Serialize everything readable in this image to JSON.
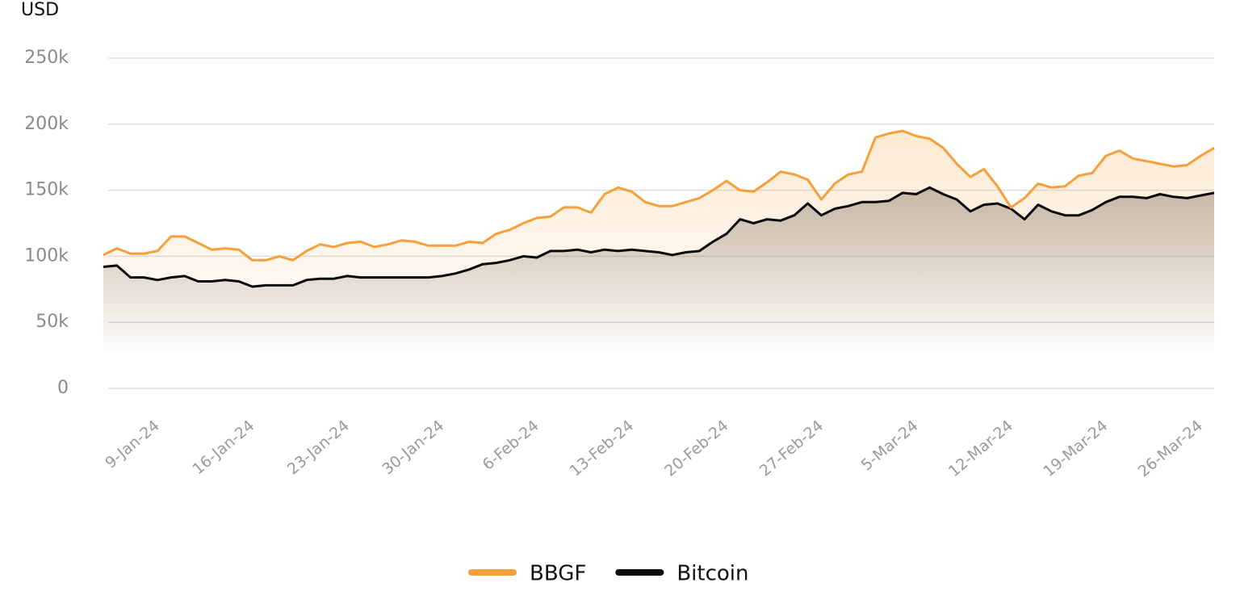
{
  "chart_data": {
    "type": "line",
    "y_label": "USD",
    "area": true,
    "grid": true,
    "x": [
      "2024-01-05",
      "2024-01-06",
      "2024-01-07",
      "2024-01-08",
      "2024-01-09",
      "2024-01-10",
      "2024-01-11",
      "2024-01-12",
      "2024-01-13",
      "2024-01-14",
      "2024-01-15",
      "2024-01-16",
      "2024-01-17",
      "2024-01-18",
      "2024-01-19",
      "2024-01-20",
      "2024-01-21",
      "2024-01-22",
      "2024-01-23",
      "2024-01-24",
      "2024-01-25",
      "2024-01-26",
      "2024-01-27",
      "2024-01-28",
      "2024-01-29",
      "2024-01-30",
      "2024-01-31",
      "2024-02-01",
      "2024-02-02",
      "2024-02-03",
      "2024-02-04",
      "2024-02-05",
      "2024-02-06",
      "2024-02-07",
      "2024-02-08",
      "2024-02-09",
      "2024-02-10",
      "2024-02-11",
      "2024-02-12",
      "2024-02-13",
      "2024-02-14",
      "2024-02-15",
      "2024-02-16",
      "2024-02-17",
      "2024-02-18",
      "2024-02-19",
      "2024-02-20",
      "2024-02-21",
      "2024-02-22",
      "2024-02-23",
      "2024-02-24",
      "2024-02-25",
      "2024-02-26",
      "2024-02-27",
      "2024-02-28",
      "2024-02-29",
      "2024-03-01",
      "2024-03-02",
      "2024-03-03",
      "2024-03-04",
      "2024-03-05",
      "2024-03-06",
      "2024-03-07",
      "2024-03-08",
      "2024-03-09",
      "2024-03-10",
      "2024-03-11",
      "2024-03-12",
      "2024-03-13",
      "2024-03-14",
      "2024-03-15",
      "2024-03-16",
      "2024-03-17",
      "2024-03-18",
      "2024-03-19",
      "2024-03-20",
      "2024-03-21",
      "2024-03-22",
      "2024-03-23",
      "2024-03-24",
      "2024-03-25",
      "2024-03-26",
      "2024-03-27"
    ],
    "xlim": [
      "2024-01-05",
      "2024-03-27"
    ],
    "xticks": [
      {
        "value": "2024-01-09",
        "label": "9-Jan-24"
      },
      {
        "value": "2024-01-16",
        "label": "16-Jan-24"
      },
      {
        "value": "2024-01-23",
        "label": "23-Jan-24"
      },
      {
        "value": "2024-01-30",
        "label": "30-Jan-24"
      },
      {
        "value": "2024-02-06",
        "label": "6-Feb-24"
      },
      {
        "value": "2024-02-13",
        "label": "13-Feb-24"
      },
      {
        "value": "2024-02-20",
        "label": "20-Feb-24"
      },
      {
        "value": "2024-02-27",
        "label": "27-Feb-24"
      },
      {
        "value": "2024-03-05",
        "label": "5-Mar-24"
      },
      {
        "value": "2024-03-12",
        "label": "12-Mar-24"
      },
      {
        "value": "2024-03-19",
        "label": "19-Mar-24"
      },
      {
        "value": "2024-03-26",
        "label": "26-Mar-24"
      }
    ],
    "ylim": [
      0,
      250000
    ],
    "yticks": [
      0,
      {
        "value": 50000,
        "label": "50k"
      },
      {
        "value": 100000,
        "label": "100k"
      },
      {
        "value": 150000,
        "label": "150k"
      },
      {
        "value": 200000,
        "label": "200k"
      },
      {
        "value": 250000,
        "label": "250k"
      }
    ],
    "series": [
      {
        "name": "BBGF",
        "color": "#f5a03a",
        "values": [
          101000,
          106000,
          102000,
          102000,
          104000,
          115000,
          115000,
          110000,
          105000,
          106000,
          105000,
          97000,
          97000,
          100000,
          97000,
          104000,
          109000,
          107000,
          110000,
          111000,
          107000,
          109000,
          112000,
          111000,
          108000,
          108000,
          108000,
          111000,
          110000,
          117000,
          120000,
          125000,
          129000,
          130000,
          137000,
          137000,
          133000,
          147000,
          152000,
          149000,
          141000,
          138000,
          138000,
          141000,
          144000,
          150000,
          157000,
          150000,
          149000,
          156000,
          164000,
          162000,
          158000,
          143000,
          155000,
          162000,
          164000,
          190000,
          193000,
          195000,
          191000,
          189000,
          182000,
          170000,
          160000,
          166000,
          153000,
          137000,
          144000,
          155000,
          152000,
          153000,
          161000,
          163000,
          176000,
          180000,
          174000,
          172000,
          170000,
          168000,
          169000,
          176000,
          182000
        ]
      },
      {
        "name": "Bitcoin",
        "color": "#0a0a0a",
        "values": [
          92000,
          93000,
          84000,
          84000,
          82000,
          84000,
          85000,
          81000,
          81000,
          82000,
          81000,
          77000,
          78000,
          78000,
          78000,
          82000,
          83000,
          83000,
          85000,
          84000,
          84000,
          84000,
          84000,
          84000,
          84000,
          85000,
          87000,
          90000,
          94000,
          95000,
          97000,
          100000,
          99000,
          104000,
          104000,
          105000,
          103000,
          105000,
          104000,
          105000,
          104000,
          103000,
          101000,
          103000,
          104000,
          111000,
          117000,
          128000,
          125000,
          128000,
          127000,
          131000,
          140000,
          131000,
          136000,
          138000,
          141000,
          141000,
          142000,
          148000,
          147000,
          152000,
          147000,
          143000,
          134000,
          139000,
          140000,
          136000,
          128000,
          139000,
          134000,
          131000,
          131000,
          135000,
          141000,
          145000,
          145000,
          144000,
          147000,
          145000,
          144000,
          146000,
          148000
        ]
      }
    ]
  }
}
